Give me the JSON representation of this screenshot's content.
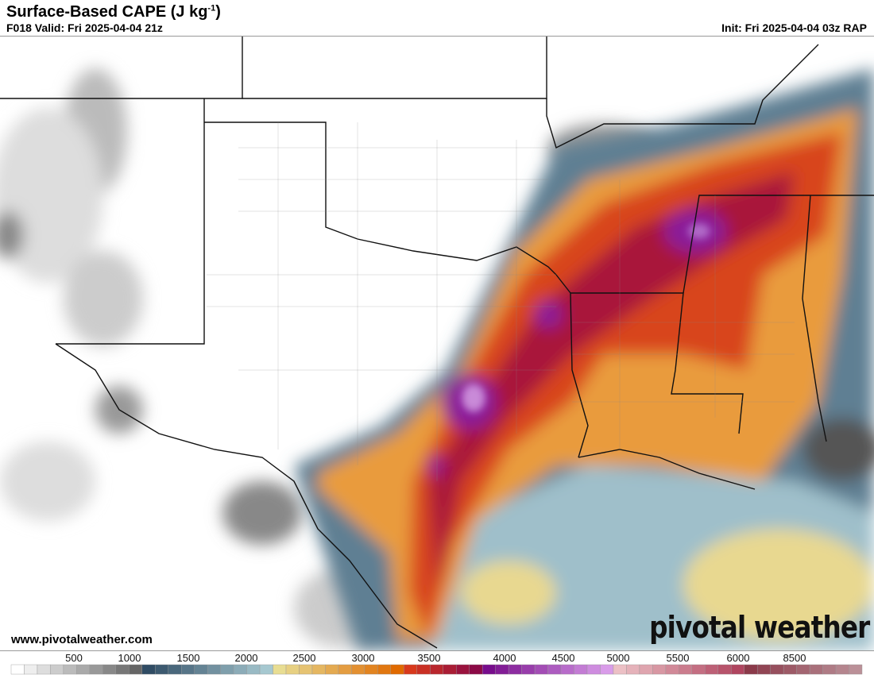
{
  "header": {
    "title": "Surface-Based CAPE (J kg",
    "title_sup": "-1",
    "title_close": ")",
    "valid": "F018 Valid: Fri 2025-04-04 21z",
    "init": "Init: Fri 2025-04-04 03z RAP"
  },
  "footer": {
    "website": "www.pivotalweather.com",
    "logo": "pivotal weather"
  },
  "colorbar": {
    "labels": [
      "500",
      "1000",
      "1500",
      "2000",
      "2500",
      "3000",
      "3500",
      "4000",
      "4500",
      "5000",
      "5500",
      "6000",
      "8500"
    ],
    "segments": [
      {
        "from": "#ffffff",
        "to": "#666666",
        "n": 10
      },
      {
        "from": "#304c64",
        "to": "#a6c8d0",
        "n": 10
      },
      {
        "from": "#e8dd92",
        "to": "#e06a00",
        "n": 10
      },
      {
        "from": "#d8391c",
        "to": "#8b0a46",
        "n": 6
      },
      {
        "from": "#770d8c",
        "to": "#d99ce9",
        "n": 10
      },
      {
        "from": "#ecc0c5",
        "to": "#b04560",
        "n": 10
      },
      {
        "from": "#8b3a4a",
        "to": "#bb9098",
        "n": 9
      }
    ]
  }
}
